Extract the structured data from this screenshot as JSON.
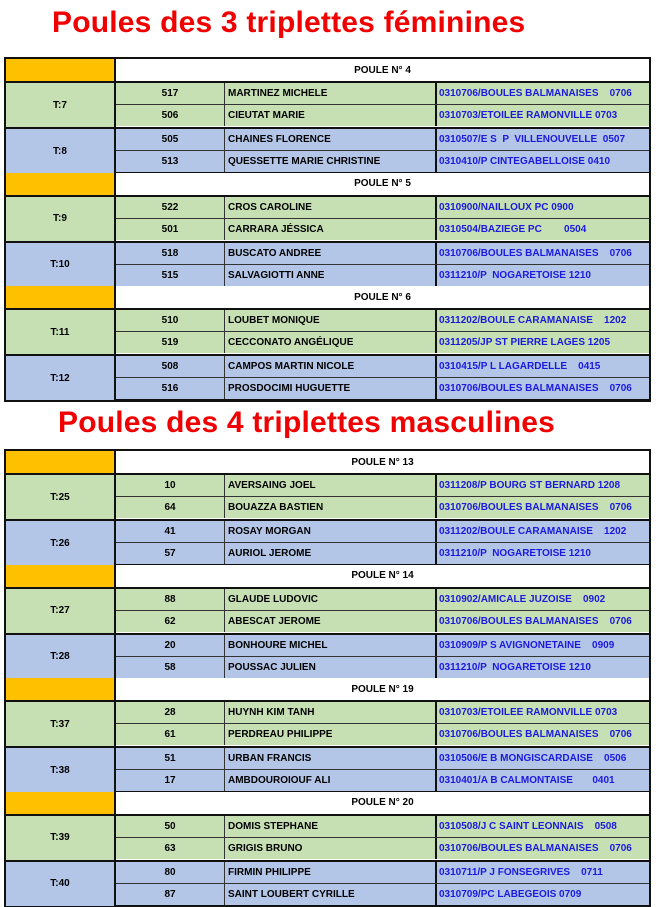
{
  "sections": [
    {
      "title": "Poules des 3 triplettes féminines",
      "poules": [
        {
          "label": "POULE N° 4",
          "teams": [
            {
              "label": "T:7",
              "players": [
                [
                  "517",
                  "MARTINEZ MICHELE",
                  "0310706/BOULES BALMANAISES    0706"
                ],
                [
                  "506",
                  "CIEUTAT MARIE",
                  "0310703/ETOILEE RAMONVILLE 0703"
                ]
              ]
            },
            {
              "label": "T:8",
              "players": [
                [
                  "505",
                  "CHAINES FLORENCE",
                  "0310507/E S  P  VILLENOUVELLE  0507"
                ],
                [
                  "513",
                  "QUESSETTE MARIE CHRISTINE",
                  "0310410/P CINTEGABELLOISE 0410"
                ]
              ]
            }
          ]
        },
        {
          "label": "POULE N° 5",
          "teams": [
            {
              "label": "T:9",
              "players": [
                [
                  "522",
                  "CROS CAROLINE",
                  "0310900/NAILLOUX PC 0900"
                ],
                [
                  "501",
                  "CARRARA JÉSSICA",
                  "0310504/BAZIEGE PC        0504"
                ]
              ]
            },
            {
              "label": "T:10",
              "players": [
                [
                  "518",
                  "BUSCATO ANDREE",
                  "0310706/BOULES BALMANAISES    0706"
                ],
                [
                  "515",
                  "SALVAGIOTTI ANNE",
                  "0311210/P  NOGARETOISE 1210"
                ]
              ]
            }
          ]
        },
        {
          "label": "POULE N° 6",
          "teams": [
            {
              "label": "T:11",
              "players": [
                [
                  "510",
                  "LOUBET MONIQUE",
                  "0311202/BOULE CARAMANAISE    1202"
                ],
                [
                  "519",
                  "CECCONATO ANGÉLIQUE",
                  "0311205/JP ST PIERRE LAGES 1205"
                ]
              ]
            },
            {
              "label": "T:12",
              "players": [
                [
                  "508",
                  "CAMPOS MARTIN NICOLE",
                  "0310415/P L LAGARDELLE    0415"
                ],
                [
                  "516",
                  "PROSDOCIMI HUGUETTE",
                  "0310706/BOULES BALMANAISES    0706"
                ]
              ]
            }
          ]
        }
      ]
    },
    {
      "title": "Poules des 4 triplettes masculines",
      "poules": [
        {
          "label": "POULE N° 13",
          "teams": [
            {
              "label": "T:25",
              "players": [
                [
                  "10",
                  "AVERSAING JOEL",
                  "0311208/P BOURG ST BERNARD 1208"
                ],
                [
                  "64",
                  "BOUAZZA BASTIEN",
                  "0310706/BOULES BALMANAISES    0706"
                ]
              ]
            },
            {
              "label": "T:26",
              "players": [
                [
                  "41",
                  "ROSAY MORGAN",
                  "0311202/BOULE CARAMANAISE    1202"
                ],
                [
                  "57",
                  "AURIOL JEROME",
                  "0311210/P  NOGARETOISE 1210"
                ]
              ]
            }
          ]
        },
        {
          "label": "POULE N° 14",
          "teams": [
            {
              "label": "T:27",
              "players": [
                [
                  "88",
                  "GLAUDE LUDOVIC",
                  "0310902/AMICALE JUZOISE    0902"
                ],
                [
                  "62",
                  "ABESCAT JEROME",
                  "0310706/BOULES BALMANAISES    0706"
                ]
              ]
            },
            {
              "label": "T:28",
              "players": [
                [
                  "20",
                  "BONHOURE MICHEL",
                  "0310909/P S AVIGNONETAINE    0909"
                ],
                [
                  "58",
                  "POUSSAC JULIEN",
                  "0311210/P  NOGARETOISE 1210"
                ]
              ]
            }
          ]
        },
        {
          "label": "POULE N° 19",
          "teams": [
            {
              "label": "T:37",
              "players": [
                [
                  "28",
                  "HUYNH KIM TANH",
                  "0310703/ETOILEE RAMONVILLE 0703"
                ],
                [
                  "61",
                  "PERDREAU PHILIPPE",
                  "0310706/BOULES BALMANAISES    0706"
                ]
              ]
            },
            {
              "label": "T:38",
              "players": [
                [
                  "51",
                  "URBAN FRANCIS",
                  "0310506/E B MONGISCARDAISE    0506"
                ],
                [
                  "17",
                  "AMBDOUROIOUF ALI",
                  "0310401/A B CALMONTAISE       0401"
                ]
              ]
            }
          ]
        },
        {
          "label": "POULE N° 20",
          "teams": [
            {
              "label": "T:39",
              "players": [
                [
                  "50",
                  "DOMIS STEPHANE",
                  "0310508/J C SAINT LEONNAIS    0508"
                ],
                [
                  "63",
                  "GRIGIS BRUNO",
                  "0310706/BOULES BALMANAISES    0706"
                ]
              ]
            },
            {
              "label": "T:40",
              "players": [
                [
                  "80",
                  "FIRMIN PHILIPPE",
                  "0310711/P J FONSEGRIVES    0711"
                ],
                [
                  "87",
                  "SAINT LOUBERT CYRILLE",
                  "0310709/PC LABEGEOIS 0709"
                ]
              ]
            }
          ]
        }
      ]
    }
  ],
  "colors": {
    "title": "#f00000",
    "header_accent": "#ffc000",
    "team_a": "#c6e0b4",
    "team_b": "#b4c6e7",
    "club_text": "#1a1adf"
  }
}
